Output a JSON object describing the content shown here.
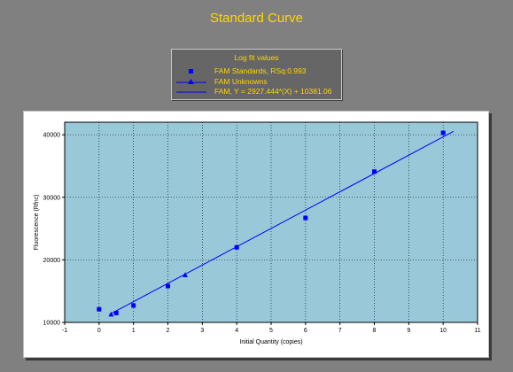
{
  "page": {
    "title": "Standard Curve"
  },
  "legend": {
    "title": "Log fit values",
    "entries": [
      {
        "label": "FAM Standards, RSq:0.993",
        "symbol": "square-icon"
      },
      {
        "label": "FAM Unknowns",
        "symbol": "triangle-line-icon"
      },
      {
        "label": "FAM, Y = 2927.444*(X) + 10381.06",
        "symbol": "line-icon"
      }
    ]
  },
  "colors": {
    "background": "#808080",
    "title": "#ffd700",
    "plot_area": "#99c8d8",
    "series": "#0000ff",
    "grid": "#000000"
  },
  "chart_data": {
    "type": "scatter",
    "xlabel": "Initial Quantity (copies)",
    "ylabel": "Fluorescence (Rfnc)",
    "xlim": [
      -1,
      11
    ],
    "ylim": [
      10000,
      42000
    ],
    "x_ticks": [
      -1,
      0,
      1,
      2,
      3,
      4,
      5,
      6,
      7,
      8,
      9,
      10,
      11
    ],
    "y_ticks": [
      10000,
      20000,
      30000,
      40000
    ],
    "grid": true,
    "legend_position": "top-center",
    "series": [
      {
        "name": "FAM Standards, RSq:0.993",
        "marker": "square",
        "x": [
          0,
          0.5,
          1,
          2,
          4,
          6,
          8,
          10
        ],
        "y": [
          12100,
          11500,
          12700,
          15800,
          22000,
          26700,
          34100,
          40300
        ]
      },
      {
        "name": "FAM Unknowns",
        "marker": "triangle",
        "x": [
          0.35,
          2.5
        ],
        "y": [
          11300,
          17600
        ]
      },
      {
        "name": "FAM, Y = 2927.444*(X) + 10381.06",
        "type": "line",
        "slope": 2927.444,
        "intercept": 10381.06,
        "x": [
          0.3,
          10.3
        ]
      }
    ]
  }
}
